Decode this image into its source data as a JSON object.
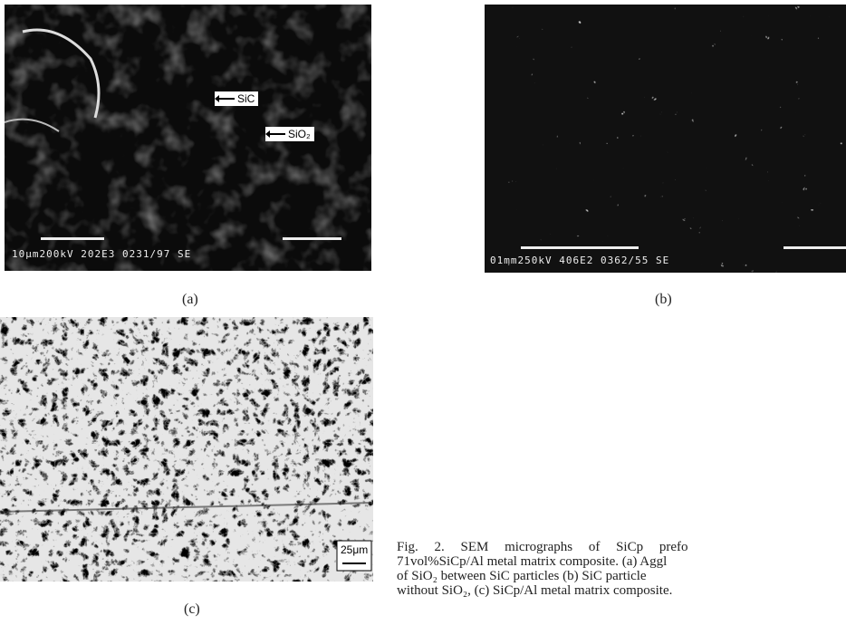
{
  "figure": {
    "panels": [
      {
        "label": "(a)",
        "annotations": [
          "SiC",
          "SiO₂"
        ],
        "scale_text": "10μm200kV 202E3 0231/97 SE"
      },
      {
        "label": "(b)",
        "scale_text": "01mm250kV 406E2 0362/55 SE"
      },
      {
        "label": "(c)",
        "scale_text": "25μm"
      }
    ],
    "caption_lines": [
      "Fig. 2. SEM micrographs of SiCp prefo",
      "71vol%SiCp/Al metal matrix composite. (a) Aggl",
      "of SiO₂ between SiC particles (b) SiC particle",
      "without SiO₂, (c) SiCp/Al metal matrix composite."
    ]
  }
}
